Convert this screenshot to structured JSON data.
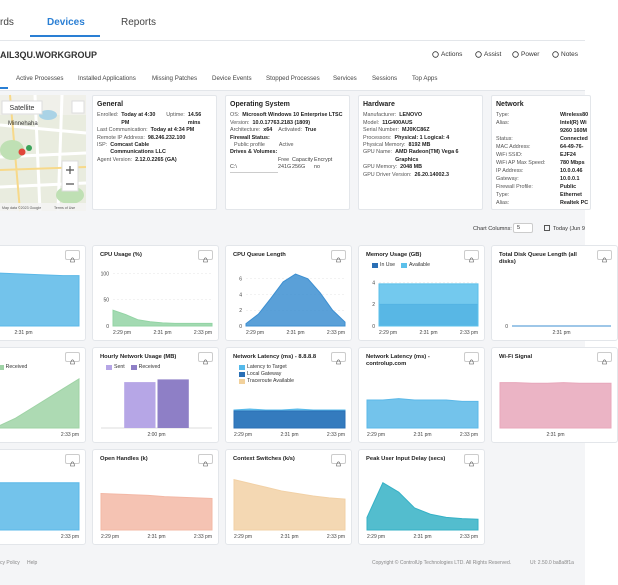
{
  "nav": {
    "tabs": [
      "rds",
      "Devices",
      "Reports"
    ]
  },
  "device": {
    "name": "AIL3QU.WORKGROUP",
    "actions": [
      "Actions",
      "Assist",
      "Power",
      "Notes"
    ],
    "tabs": [
      "Active Processes",
      "Installed Applications",
      "Missing Patches",
      "Device Events",
      "Stopped Processes",
      "Services",
      "Sessions",
      "Top Apps"
    ]
  },
  "map": {
    "button": "Satellite",
    "place": "Minnehaha",
    "attribution": "Map data ©2023 Google",
    "terms": "Terms of Use"
  },
  "general": {
    "title": "General",
    "lines": [
      [
        [
          "Enrolled:",
          "Today at 4:30 PM"
        ],
        [
          "Uptime:",
          "14.56 mins"
        ]
      ],
      [
        [
          "Last Communication:",
          "Today at 4:34 PM"
        ]
      ],
      [
        [
          "Remote IP Address:",
          "98.246.232.100"
        ]
      ],
      [
        [
          "ISP:",
          "Comcast Cable Communications LLC"
        ]
      ],
      [
        [
          "Agent Version:",
          "2.12.0.2265 (GA)"
        ]
      ]
    ]
  },
  "os": {
    "title": "Operating System",
    "lines": [
      [
        [
          "OS:",
          "Microsoft Windows 10 Enterprise LTSC"
        ]
      ],
      [
        [
          "Version:",
          "10.0.17763.2183 (1809)"
        ]
      ],
      [
        [
          "Architecture:",
          "x64"
        ],
        [
          "Activated:",
          "True"
        ]
      ]
    ],
    "firewall": {
      "label": "Firewall Status:",
      "profile": "Public profile",
      "state": "Active"
    },
    "drives": {
      "label": "Drives & Volumes:",
      "columns": [
        "Free",
        "Capacity",
        "Encrypt"
      ],
      "rows": [
        [
          "C:\\",
          "241G",
          "256G",
          "no"
        ]
      ]
    }
  },
  "hardware": {
    "title": "Hardware",
    "lines": [
      [
        [
          "Manufacturer:",
          "LENOVO"
        ]
      ],
      [
        [
          "Model:",
          "11G400AUS"
        ]
      ],
      [
        [
          "Serial Number:",
          "MJ0KC86Z"
        ]
      ],
      [
        [
          "Processors:",
          "Physical: 1  Logical: 4"
        ]
      ],
      [
        [
          "Physical Memory:",
          "8192 MB"
        ]
      ],
      [
        [
          "GPU Name:",
          "AMD Radeon(TM) Vega 6 Graphics"
        ]
      ],
      [
        [
          "GPU Memory:",
          "2048 MB"
        ]
      ],
      [
        [
          "GPU Driver Version:",
          "26.20.14002.3"
        ]
      ]
    ]
  },
  "network": {
    "title": "Network",
    "lines": [
      [
        [
          "Type:",
          "Wireless80"
        ]
      ],
      [
        [
          "Alias:",
          "Intel(R) Wi 9260 160M"
        ]
      ],
      [
        [
          "Status:",
          "Connected"
        ]
      ],
      [
        [
          "MAC Address:",
          "64-49-76-"
        ]
      ],
      [
        [
          "WiFi SSID:",
          "EJF24"
        ]
      ],
      [
        [
          "WiFi AP Max Speed:",
          "780 Mbps"
        ]
      ],
      [
        [
          "IP Address:",
          "10.0.0.46"
        ]
      ],
      [
        [
          "Gateway:",
          "10.0.0.1"
        ]
      ],
      [
        [
          "Firewall Profile:",
          "Public"
        ]
      ],
      [
        [
          "Type:",
          "Ethernet"
        ]
      ],
      [
        [
          "Alias:",
          "Realtek PC"
        ]
      ]
    ]
  },
  "controls": {
    "label": "Chart Columns:",
    "value": "5",
    "date": "Today (Jun 9"
  },
  "charts": [
    {
      "type": "area",
      "color": "#5bb8e8",
      "values": [
        0.85,
        0.84,
        0.84,
        0.83,
        0.82,
        0.81,
        0.8,
        0.8
      ],
      "ylim": [
        0,
        1
      ],
      "xlabels": [
        "2:31 pm"
      ]
    },
    {
      "type": "area",
      "title": "CPU Usage (%)",
      "color": "#93d4a4",
      "values": [
        30,
        22,
        12,
        8,
        6,
        5,
        5,
        5,
        5
      ],
      "ylim": [
        0,
        120
      ],
      "yticks": [
        0,
        50,
        100
      ],
      "xlabels": [
        "2:29 pm",
        "2:31 pm",
        "2:33 pm"
      ]
    },
    {
      "type": "area",
      "title": "CPU Queue Length",
      "color": "#3d8fd1",
      "values": [
        0.3,
        1.5,
        3.5,
        5.6,
        6.6,
        6.0,
        4.2,
        2.0,
        0.5
      ],
      "ylim": [
        0,
        8
      ],
      "yticks": [
        0,
        2,
        4,
        6
      ],
      "xlabels": [
        "2:29 pm",
        "2:31 pm",
        "2:33 pm"
      ]
    },
    {
      "type": "area",
      "title": "Memory Usage (GB)",
      "series": [
        {
          "name": "In Use",
          "color": "#2a6fb5",
          "values": [
            2,
            2,
            2,
            2,
            2,
            2,
            2,
            2
          ]
        },
        {
          "name": "Available",
          "color": "#5bc0eb",
          "values": [
            3.9,
            3.9,
            3.9,
            3.9,
            3.9,
            3.9,
            3.9,
            3.9
          ]
        }
      ],
      "ylim": [
        0,
        5
      ],
      "yticks": [
        0,
        2,
        4
      ],
      "xlabels": [
        "2:29 pm",
        "2:31 pm",
        "2:33 pm"
      ]
    },
    {
      "type": "area",
      "title": "Total Disk Queue Length (all disks)",
      "color": "#3d8fd1",
      "values": [
        0,
        0,
        0,
        0,
        0,
        0,
        0,
        0
      ],
      "ylim": [
        0,
        1
      ],
      "yticks": [
        0
      ],
      "xlabels": [
        "2:31 pm"
      ]
    },
    {
      "type": "area",
      "title": "ge (Mb/s)",
      "series": [
        {
          "name": "Sent",
          "color": "#9fc9ea",
          "values": [
            0,
            0,
            0,
            0,
            0,
            0,
            0,
            0
          ]
        },
        {
          "name": "Received",
          "color": "#9fd3a6",
          "values": [
            0,
            0,
            0.05,
            0.2,
            0.4,
            0.6,
            0.8,
            1
          ]
        }
      ],
      "ylim": [
        0,
        1.1
      ],
      "xlabels": [
        "2:31 pm",
        "2:33 pm"
      ]
    },
    {
      "type": "bar",
      "title": "Hourly Network Usage (MB)",
      "categories": [
        "2:00 pm"
      ],
      "series": [
        {
          "name": "Sent",
          "color": "#b6a6e6",
          "values": [
            0.85
          ]
        },
        {
          "name": "Received",
          "color": "#8e7fc6",
          "values": [
            0.9
          ]
        }
      ],
      "ylim": [
        0,
        1
      ]
    },
    {
      "type": "area",
      "title": "Network Latency (ms) - 8.8.8.8",
      "series": [
        {
          "name": "Latency to Target",
          "color": "#55b9ea",
          "values": [
            18,
            19,
            18,
            18,
            19,
            18,
            18,
            18
          ]
        },
        {
          "name": "Local Gateway",
          "color": "#2a6fb5",
          "values": [
            17,
            17,
            17,
            17,
            17,
            17,
            17,
            17
          ]
        },
        {
          "name": "Traceroute Available",
          "color": "#f2d19b",
          "values": [
            null,
            null,
            null,
            null,
            null,
            null,
            null,
            null
          ]
        }
      ],
      "ylim": [
        0,
        40
      ],
      "xlabels": [
        "2:29 pm",
        "2:31 pm",
        "2:33 pm"
      ]
    },
    {
      "type": "area",
      "title": "Network Latency (ms) - controlup.com",
      "color": "#5bb8e8",
      "values": [
        20,
        20,
        21,
        20,
        20,
        20,
        19,
        19
      ],
      "ylim": [
        0,
        40
      ],
      "xlabels": [
        "2:29 pm",
        "2:31 pm",
        "2:33 pm"
      ]
    },
    {
      "type": "area",
      "title": "Wi-Fi Signal",
      "color": "#e8a7bb",
      "values": [
        0.72,
        0.72,
        0.71,
        0.71,
        0.72,
        0.71,
        0.71,
        0.71
      ],
      "ylim": [
        0,
        1
      ],
      "xlabels": [
        "2:31 pm"
      ]
    },
    {
      "type": "area",
      "title": "ns",
      "color": "#5bb8e8",
      "values": [
        0.75,
        0.75,
        0.75,
        0.75,
        0.75,
        0.75,
        0.75,
        0.75
      ],
      "ylim": [
        0,
        1
      ],
      "xlabels": [
        "2:31 pm",
        "2:33 pm"
      ]
    },
    {
      "type": "area",
      "title": "Open Handles (k)",
      "color": "#f3b8a6",
      "values": [
        0.58,
        0.57,
        0.56,
        0.55,
        0.53,
        0.52,
        0.51,
        0.5
      ],
      "ylim": [
        0,
        1
      ],
      "xlabels": [
        "2:29 pm",
        "2:31 pm",
        "2:33 pm"
      ]
    },
    {
      "type": "area",
      "title": "Context Switches (k/s)",
      "color": "#f2d1a6",
      "values": [
        0.8,
        0.74,
        0.68,
        0.62,
        0.58,
        0.54,
        0.51,
        0.49
      ],
      "ylim": [
        0,
        1
      ],
      "xlabels": [
        "2:29 pm",
        "2:31 pm",
        "2:33 pm"
      ]
    },
    {
      "type": "area",
      "title": "Peak User Input Delay (secs)",
      "color": "#35b1c6",
      "values": [
        0.2,
        0.75,
        0.6,
        0.35,
        0.25,
        0.2,
        0.18,
        0.17
      ],
      "ylim": [
        0,
        1
      ],
      "xlabels": [
        "2:29 pm",
        "2:31 pm",
        "2:33 pm"
      ]
    }
  ],
  "footer": {
    "links": [
      "cy Policy",
      "Help"
    ],
    "copyright": "Copyright © ControlUp Technologies LTD. All Rights Reserved.",
    "version": "UI: 2.50.0 ba8a8f1a"
  }
}
